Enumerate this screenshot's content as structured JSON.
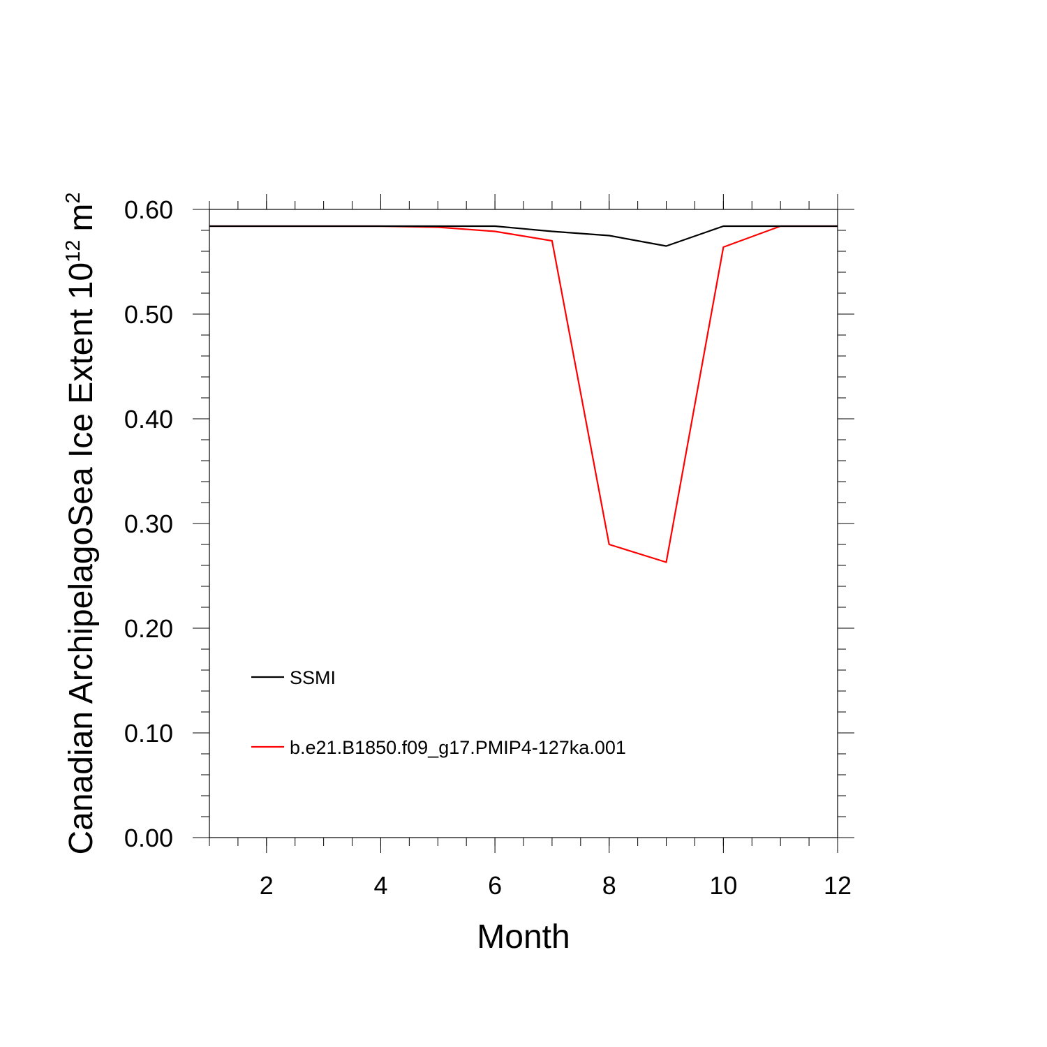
{
  "chart_data": {
    "type": "line",
    "xlabel": "Month",
    "ylabel": "Canadian ArchipelagoSea Ice Extent 10",
    "ylabel_exponent": "12",
    "ylabel_unit": "m",
    "ylabel_unit_exponent": "2",
    "xlim": [
      1,
      12
    ],
    "ylim": [
      0,
      0.6
    ],
    "x_ticks": [
      2,
      4,
      6,
      8,
      10,
      12
    ],
    "x_tick_labels": [
      "2",
      "4",
      "6",
      "8",
      "10",
      "12"
    ],
    "y_ticks": [
      0,
      0.1,
      0.2,
      0.3,
      0.4,
      0.5,
      0.6
    ],
    "y_tick_labels": [
      "0.00",
      "0.10",
      "0.20",
      "0.30",
      "0.40",
      "0.50",
      "0.60"
    ],
    "grid": false,
    "legend_position": "lower-left",
    "x": [
      1,
      2,
      3,
      4,
      5,
      6,
      7,
      8,
      9,
      10,
      11,
      12
    ],
    "series": [
      {
        "name": "SSMI",
        "color": "#000000",
        "values": [
          0.584,
          0.584,
          0.584,
          0.584,
          0.584,
          0.584,
          0.579,
          0.575,
          0.565,
          0.584,
          0.584,
          0.584
        ]
      },
      {
        "name": "b.e21.B1850.f09_g17.PMIP4-127ka.001",
        "color": "#ff0000",
        "values": [
          0.584,
          0.584,
          0.584,
          0.584,
          0.583,
          0.579,
          0.57,
          0.28,
          0.263,
          0.564,
          0.584,
          0.584
        ]
      }
    ]
  }
}
